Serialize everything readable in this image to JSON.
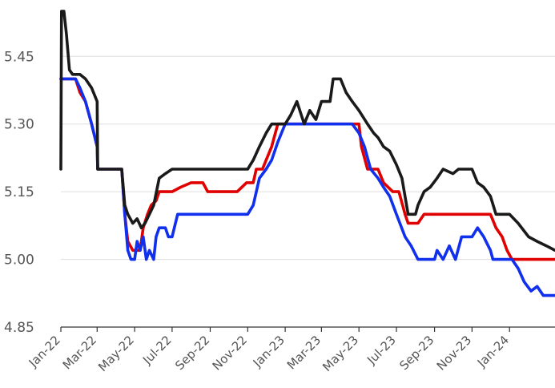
{
  "chart_data": {
    "type": "line",
    "title": "",
    "xlabel": "",
    "ylabel": "",
    "ylim": [
      4.85,
      5.55
    ],
    "xlim": [
      "2022-01-01",
      "2024-03-15"
    ],
    "grid": "horizontal",
    "legend": "none",
    "yticks": [
      4.85,
      5.0,
      5.15,
      5.3,
      5.45
    ],
    "ytick_labels": [
      "4.85",
      "5.00",
      "5.15",
      "5.30",
      "5.45"
    ],
    "xticks": [
      "2022-01-01",
      "2022-03-01",
      "2022-05-01",
      "2022-07-01",
      "2022-09-01",
      "2022-11-01",
      "2023-01-01",
      "2023-03-01",
      "2023-05-01",
      "2023-07-01",
      "2023-09-01",
      "2023-11-01",
      "2024-01-01"
    ],
    "xtick_labels": [
      "Jan-22",
      "Mar-22",
      "May-22",
      "Jul-22",
      "Sep-22",
      "Nov-22",
      "Jan-23",
      "Mar-23",
      "May-23",
      "Jul-23",
      "Sep-23",
      "Nov-23",
      "Jan-24"
    ],
    "series": [
      {
        "color": "#e00000",
        "points": [
          [
            "2022-01-01",
            5.4
          ],
          [
            "2022-01-25",
            5.4
          ],
          [
            "2022-02-01",
            5.37
          ],
          [
            "2022-02-10",
            5.35
          ],
          [
            "2022-02-20",
            5.3
          ],
          [
            "2022-03-01",
            5.25
          ],
          [
            "2022-03-02",
            5.2
          ],
          [
            "2022-04-10",
            5.2
          ],
          [
            "2022-04-15",
            5.1
          ],
          [
            "2022-04-20",
            5.04
          ],
          [
            "2022-04-28",
            5.02
          ],
          [
            "2022-05-10",
            5.02
          ],
          [
            "2022-05-15",
            5.07
          ],
          [
            "2022-05-22",
            5.1
          ],
          [
            "2022-05-28",
            5.12
          ],
          [
            "2022-06-05",
            5.13
          ],
          [
            "2022-06-10",
            5.15
          ],
          [
            "2022-07-01",
            5.15
          ],
          [
            "2022-07-15",
            5.16
          ],
          [
            "2022-08-01",
            5.17
          ],
          [
            "2022-08-20",
            5.17
          ],
          [
            "2022-08-28",
            5.15
          ],
          [
            "2022-09-02",
            5.15
          ],
          [
            "2022-09-12",
            5.15
          ],
          [
            "2022-10-01",
            5.15
          ],
          [
            "2022-10-15",
            5.15
          ],
          [
            "2022-10-30",
            5.17
          ],
          [
            "2022-11-10",
            5.17
          ],
          [
            "2022-11-15",
            5.2
          ],
          [
            "2022-11-25",
            5.2
          ],
          [
            "2022-12-01",
            5.22
          ],
          [
            "2022-12-10",
            5.25
          ],
          [
            "2022-12-20",
            5.3
          ],
          [
            "2023-01-10",
            5.3
          ],
          [
            "2023-02-01",
            5.3
          ],
          [
            "2023-03-01",
            5.3
          ],
          [
            "2023-04-01",
            5.3
          ],
          [
            "2023-05-01",
            5.3
          ],
          [
            "2023-05-05",
            5.25
          ],
          [
            "2023-05-15",
            5.2
          ],
          [
            "2023-06-01",
            5.2
          ],
          [
            "2023-06-10",
            5.17
          ],
          [
            "2023-06-25",
            5.15
          ],
          [
            "2023-07-05",
            5.15
          ],
          [
            "2023-07-15",
            5.1
          ],
          [
            "2023-07-20",
            5.08
          ],
          [
            "2023-08-05",
            5.08
          ],
          [
            "2023-08-15",
            5.1
          ],
          [
            "2023-09-15",
            5.1
          ],
          [
            "2023-10-01",
            5.1
          ],
          [
            "2023-10-15",
            5.1
          ],
          [
            "2023-11-01",
            5.1
          ],
          [
            "2023-11-15",
            5.1
          ],
          [
            "2023-12-01",
            5.1
          ],
          [
            "2023-12-10",
            5.07
          ],
          [
            "2023-12-20",
            5.05
          ],
          [
            "2023-12-28",
            5.02
          ],
          [
            "2024-01-05",
            5.0
          ],
          [
            "2024-03-15",
            5.0
          ]
        ]
      },
      {
        "color": "#1030ee",
        "points": [
          [
            "2022-01-01",
            5.4
          ],
          [
            "2022-01-20",
            5.4
          ],
          [
            "2022-01-25",
            5.4
          ],
          [
            "2022-02-01",
            5.38
          ],
          [
            "2022-02-10",
            5.35
          ],
          [
            "2022-02-20",
            5.3
          ],
          [
            "2022-03-01",
            5.25
          ],
          [
            "2022-03-02",
            5.2
          ],
          [
            "2022-04-10",
            5.2
          ],
          [
            "2022-04-15",
            5.1
          ],
          [
            "2022-04-20",
            5.02
          ],
          [
            "2022-04-25",
            5.0
          ],
          [
            "2022-05-01",
            5.0
          ],
          [
            "2022-05-05",
            5.04
          ],
          [
            "2022-05-10",
            5.02
          ],
          [
            "2022-05-15",
            5.05
          ],
          [
            "2022-05-20",
            5.0
          ],
          [
            "2022-05-25",
            5.02
          ],
          [
            "2022-06-01",
            5.0
          ],
          [
            "2022-06-05",
            5.05
          ],
          [
            "2022-06-10",
            5.07
          ],
          [
            "2022-06-20",
            5.07
          ],
          [
            "2022-06-25",
            5.05
          ],
          [
            "2022-07-01",
            5.05
          ],
          [
            "2022-07-10",
            5.1
          ],
          [
            "2022-08-01",
            5.1
          ],
          [
            "2022-08-15",
            5.1
          ],
          [
            "2022-09-01",
            5.1
          ],
          [
            "2022-09-15",
            5.1
          ],
          [
            "2022-10-01",
            5.1
          ],
          [
            "2022-10-15",
            5.1
          ],
          [
            "2022-11-01",
            5.1
          ],
          [
            "2022-11-10",
            5.12
          ],
          [
            "2022-11-20",
            5.18
          ],
          [
            "2022-12-01",
            5.2
          ],
          [
            "2022-12-10",
            5.22
          ],
          [
            "2022-12-20",
            5.26
          ],
          [
            "2023-01-01",
            5.3
          ],
          [
            "2023-02-01",
            5.3
          ],
          [
            "2023-03-01",
            5.3
          ],
          [
            "2023-04-01",
            5.3
          ],
          [
            "2023-04-20",
            5.3
          ],
          [
            "2023-05-01",
            5.28
          ],
          [
            "2023-05-10",
            5.25
          ],
          [
            "2023-05-20",
            5.2
          ],
          [
            "2023-06-01",
            5.18
          ],
          [
            "2023-06-10",
            5.16
          ],
          [
            "2023-06-20",
            5.14
          ],
          [
            "2023-07-01",
            5.1
          ],
          [
            "2023-07-15",
            5.05
          ],
          [
            "2023-07-25",
            5.03
          ],
          [
            "2023-08-05",
            5.0
          ],
          [
            "2023-08-20",
            5.0
          ],
          [
            "2023-09-01",
            5.0
          ],
          [
            "2023-09-05",
            5.02
          ],
          [
            "2023-09-15",
            5.0
          ],
          [
            "2023-09-25",
            5.03
          ],
          [
            "2023-10-05",
            5.0
          ],
          [
            "2023-10-15",
            5.05
          ],
          [
            "2023-11-01",
            5.05
          ],
          [
            "2023-11-10",
            5.07
          ],
          [
            "2023-11-20",
            5.05
          ],
          [
            "2023-12-01",
            5.02
          ],
          [
            "2023-12-05",
            5.0
          ],
          [
            "2023-12-20",
            5.0
          ],
          [
            "2024-01-05",
            5.0
          ],
          [
            "2024-01-15",
            4.98
          ],
          [
            "2024-01-25",
            4.95
          ],
          [
            "2024-02-05",
            4.93
          ],
          [
            "2024-02-15",
            4.94
          ],
          [
            "2024-02-25",
            4.92
          ],
          [
            "2024-03-15",
            4.92
          ]
        ]
      },
      {
        "color": "#1a1a1a",
        "points": [
          [
            "2022-01-01",
            5.2
          ],
          [
            "2022-01-02",
            5.55
          ],
          [
            "2022-01-06",
            5.55
          ],
          [
            "2022-01-10",
            5.5
          ],
          [
            "2022-01-15",
            5.42
          ],
          [
            "2022-01-20",
            5.41
          ],
          [
            "2022-02-01",
            5.41
          ],
          [
            "2022-02-10",
            5.4
          ],
          [
            "2022-02-20",
            5.38
          ],
          [
            "2022-03-01",
            5.35
          ],
          [
            "2022-03-02",
            5.2
          ],
          [
            "2022-04-10",
            5.2
          ],
          [
            "2022-04-15",
            5.12
          ],
          [
            "2022-04-20",
            5.1
          ],
          [
            "2022-04-28",
            5.08
          ],
          [
            "2022-05-05",
            5.09
          ],
          [
            "2022-05-12",
            5.07
          ],
          [
            "2022-05-18",
            5.08
          ],
          [
            "2022-05-25",
            5.1
          ],
          [
            "2022-06-01",
            5.12
          ],
          [
            "2022-06-10",
            5.18
          ],
          [
            "2022-06-20",
            5.19
          ],
          [
            "2022-07-01",
            5.2
          ],
          [
            "2022-07-15",
            5.2
          ],
          [
            "2022-08-01",
            5.2
          ],
          [
            "2022-08-20",
            5.2
          ],
          [
            "2022-09-01",
            5.2
          ],
          [
            "2022-09-15",
            5.2
          ],
          [
            "2022-10-01",
            5.2
          ],
          [
            "2022-10-15",
            5.2
          ],
          [
            "2022-11-01",
            5.2
          ],
          [
            "2022-11-10",
            5.22
          ],
          [
            "2022-11-20",
            5.25
          ],
          [
            "2022-12-01",
            5.28
          ],
          [
            "2022-12-10",
            5.3
          ],
          [
            "2023-01-01",
            5.3
          ],
          [
            "2023-01-10",
            5.32
          ],
          [
            "2023-01-20",
            5.35
          ],
          [
            "2023-02-01",
            5.3
          ],
          [
            "2023-02-10",
            5.33
          ],
          [
            "2023-02-20",
            5.31
          ],
          [
            "2023-03-01",
            5.35
          ],
          [
            "2023-03-15",
            5.35
          ],
          [
            "2023-03-20",
            5.4
          ],
          [
            "2023-04-01",
            5.4
          ],
          [
            "2023-04-10",
            5.37
          ],
          [
            "2023-04-20",
            5.35
          ],
          [
            "2023-05-01",
            5.33
          ],
          [
            "2023-05-15",
            5.3
          ],
          [
            "2023-05-25",
            5.28
          ],
          [
            "2023-06-01",
            5.27
          ],
          [
            "2023-06-10",
            5.25
          ],
          [
            "2023-06-20",
            5.24
          ],
          [
            "2023-07-01",
            5.21
          ],
          [
            "2023-07-10",
            5.18
          ],
          [
            "2023-07-20",
            5.1
          ],
          [
            "2023-08-01",
            5.1
          ],
          [
            "2023-08-05",
            5.12
          ],
          [
            "2023-08-15",
            5.15
          ],
          [
            "2023-08-25",
            5.16
          ],
          [
            "2023-09-05",
            5.18
          ],
          [
            "2023-09-15",
            5.2
          ],
          [
            "2023-10-01",
            5.19
          ],
          [
            "2023-10-10",
            5.2
          ],
          [
            "2023-11-01",
            5.2
          ],
          [
            "2023-11-10",
            5.17
          ],
          [
            "2023-11-20",
            5.16
          ],
          [
            "2023-12-01",
            5.14
          ],
          [
            "2023-12-10",
            5.1
          ],
          [
            "2024-01-01",
            5.1
          ],
          [
            "2024-01-15",
            5.08
          ],
          [
            "2024-02-01",
            5.05
          ],
          [
            "2024-02-15",
            5.04
          ],
          [
            "2024-03-01",
            5.03
          ],
          [
            "2024-03-15",
            5.02
          ]
        ]
      }
    ]
  }
}
